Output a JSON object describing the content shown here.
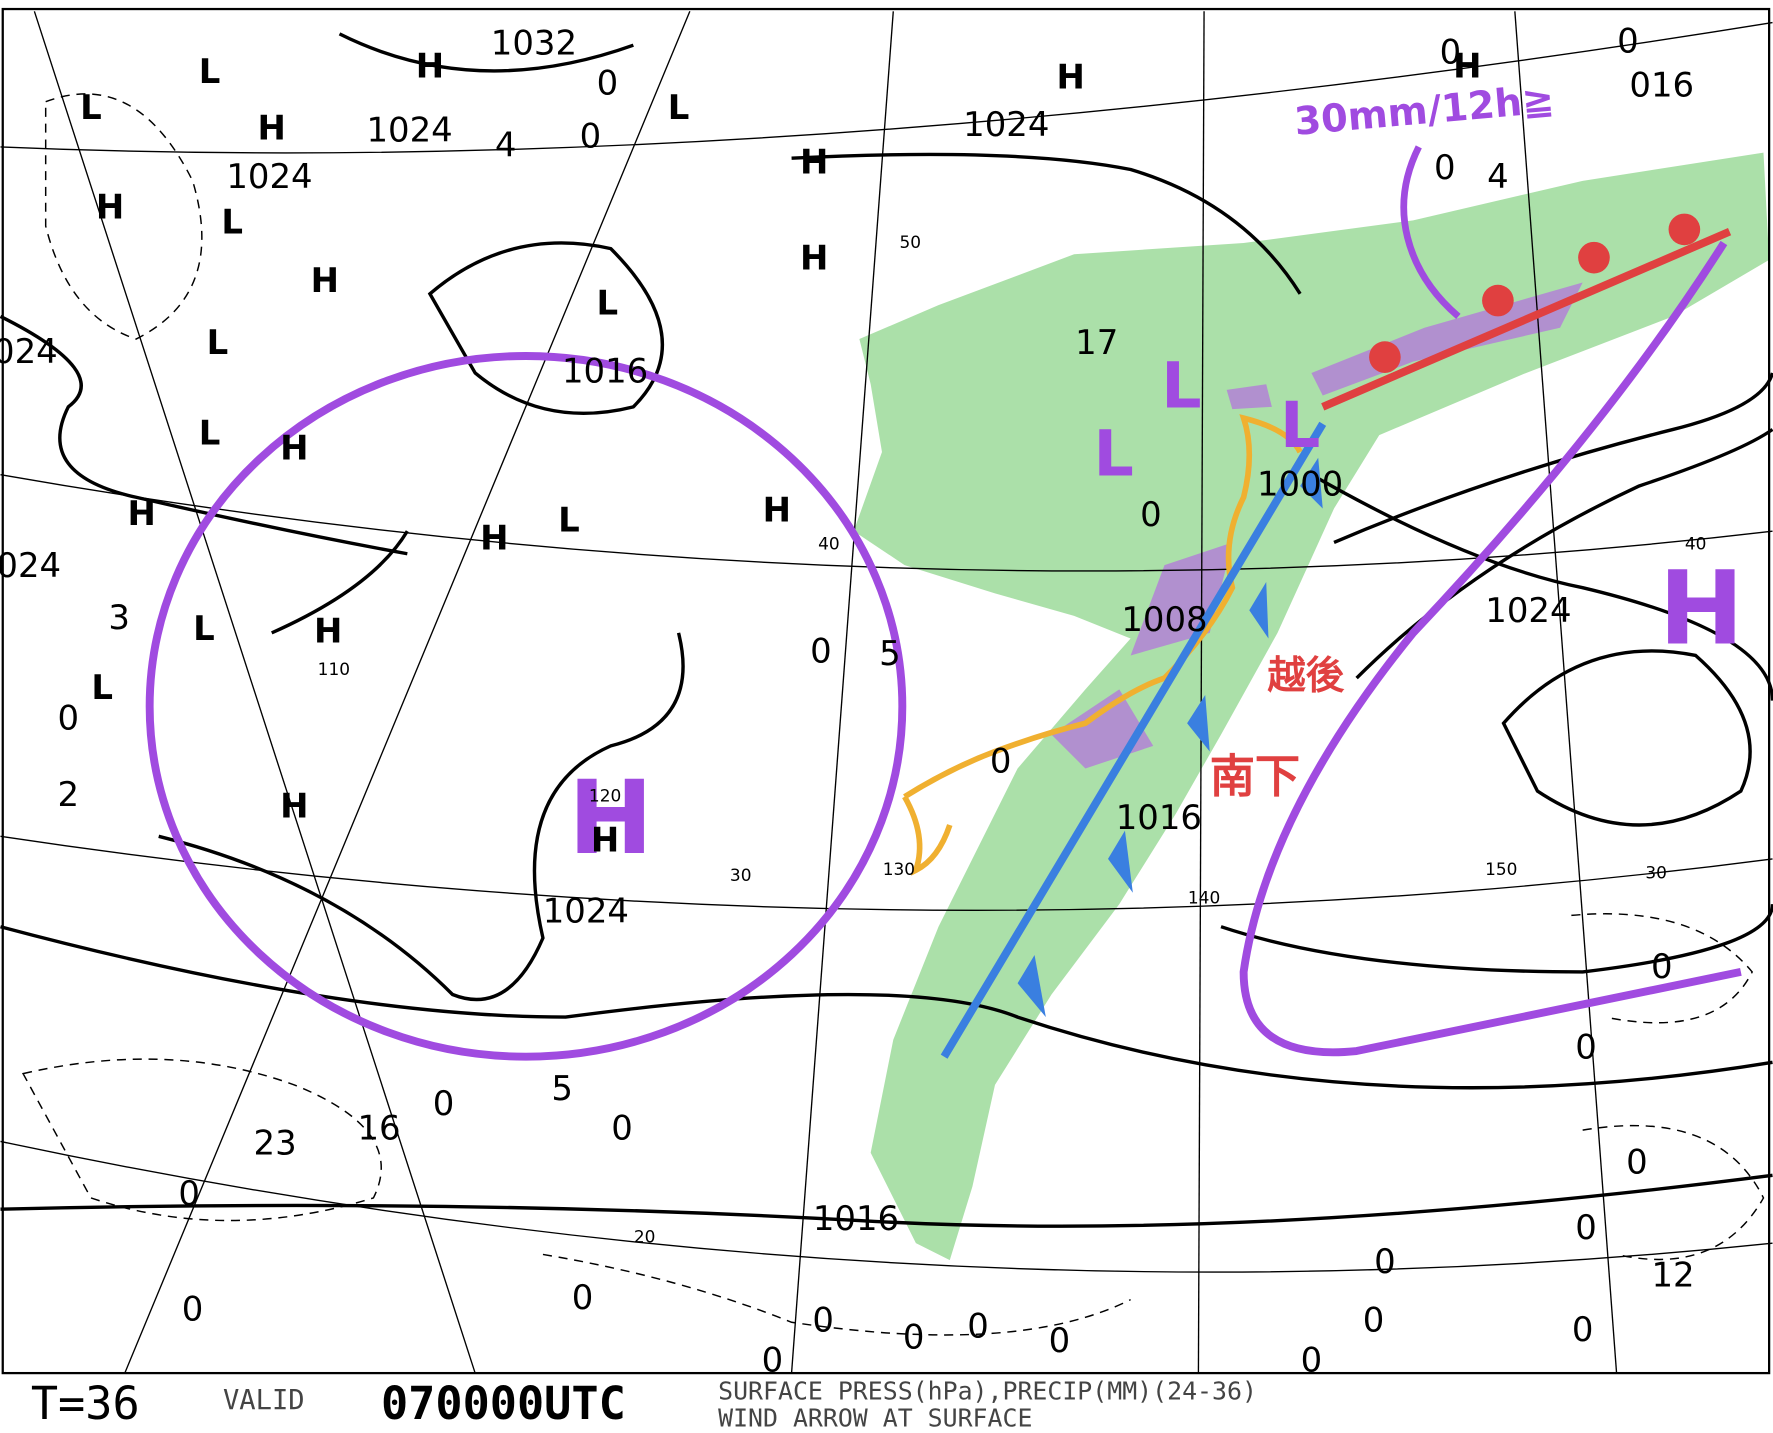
{
  "footer": {
    "forecast_time": "T=36",
    "valid_label": "VALID",
    "valid_time": "070000UTC",
    "description_line1": "SURFACE PRESS(hPa),PRECIP(MM)(24-36)",
    "description_line2": "WIND ARROW AT SURFACE"
  },
  "pressure_centers": [
    "L",
    "L",
    "H",
    "H",
    "L",
    "H",
    "L",
    "L",
    "H",
    "H",
    "L",
    "H",
    "L",
    "H",
    "L",
    "H",
    "H",
    "L",
    "H",
    "L",
    "H",
    "H",
    "H",
    "H",
    "H"
  ],
  "isobar_labels": [
    "1032",
    "1024",
    "1024",
    "1024",
    "1016",
    "024",
    "024",
    "1024",
    "1016",
    "1024",
    "1016",
    "1008",
    "1000",
    "016"
  ],
  "precip_labels": [
    "4",
    "0",
    "0",
    "3",
    "0",
    "2",
    "23",
    "16",
    "0",
    "5",
    "0",
    "0",
    "0",
    "0",
    "0",
    "0",
    "0",
    "0",
    "0",
    "0",
    "0",
    "0",
    "0",
    "0",
    "0",
    "0",
    "0",
    "12",
    "0",
    "0",
    "4",
    "0",
    "17",
    "0",
    "0",
    "5",
    "0"
  ],
  "grid_labels": [
    "50",
    "40",
    "30",
    "20",
    "110",
    "120",
    "130",
    "140",
    "150",
    "40",
    "30"
  ],
  "annotations": {
    "rainfall": "30mm/12h≧",
    "high_west": "H",
    "high_east": "H",
    "lows": [
      "L",
      "L",
      "L"
    ],
    "region": "越後",
    "motion": "南下"
  }
}
